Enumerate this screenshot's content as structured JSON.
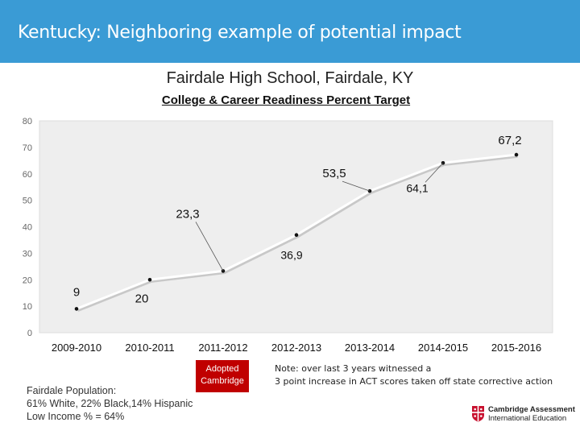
{
  "slide": {
    "title": "Kentucky: Neighboring example of potential impact"
  },
  "badge": {
    "line1": "Adopted",
    "line2": "Cambridge"
  },
  "population": {
    "line1": "Fairdale Population:",
    "line2": "61% White, 22% Black,14% Hispanic",
    "line3": "Low Income % = 64%"
  },
  "note": {
    "line1": "Note:  over last 3 years witnessed a",
    "line2": "3 point increase in ACT scores taken off state corrective action"
  },
  "logo": {
    "line1": "Cambridge Assessment",
    "line2": "International Education",
    "icon": "crest-icon"
  },
  "chart_data": {
    "type": "line",
    "title": "Fairdale High School, Fairdale, KY",
    "subtitle": "College & Career Readiness  Percent Target",
    "categories": [
      "2009-2010",
      "2010-2011",
      "2011-2012",
      "2012-2013",
      "2013-2014",
      "2014-2015",
      "2015-2016"
    ],
    "values": [
      9,
      20,
      23.3,
      36.9,
      53.5,
      64.1,
      67.2
    ],
    "labels": [
      "9",
      "20",
      "23,3",
      "36,9",
      "53,5",
      "64,1",
      "67,2"
    ],
    "y_ticks": [
      0,
      10,
      20,
      30,
      40,
      50,
      60,
      70,
      80
    ],
    "ylim": [
      0,
      80
    ],
    "grid": false,
    "legend": "none",
    "colors": {
      "line": "#ffffff",
      "plot_background": "#eeeeee",
      "marker": "#111111"
    }
  }
}
